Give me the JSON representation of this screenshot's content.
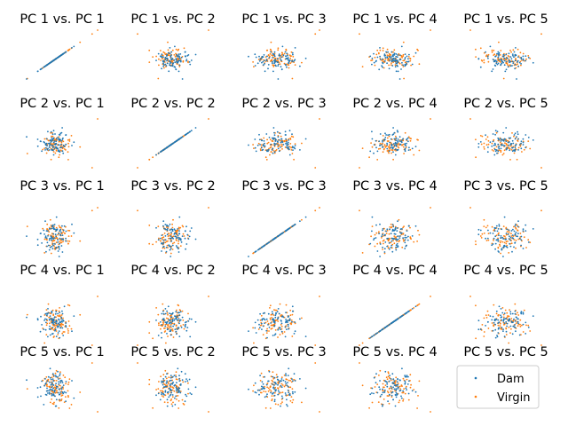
{
  "chart_data": {
    "type": "scatter",
    "layout": "5x5 pairwise principal component scatter matrix",
    "axes_visible": false,
    "grid": false,
    "legend_placement": "bottom-right panel",
    "legend": [
      "Dam",
      "Virgin"
    ],
    "series": [
      {
        "name": "Dam",
        "color": "#1f77b4",
        "marker": "dot"
      },
      {
        "name": "Virgin",
        "color": "#ff7f0e",
        "marker": "dot"
      }
    ],
    "components": [
      "PC 1",
      "PC 2",
      "PC 3",
      "PC 4",
      "PC 5"
    ],
    "titles": [
      [
        "PC 1 vs. PC 1",
        "PC 1 vs. PC 2",
        "PC 1 vs. PC 3",
        "PC 1 vs. PC 4",
        "PC 1 vs. PC 5"
      ],
      [
        "PC 2 vs. PC 1",
        "PC 2 vs. PC 2",
        "PC 2 vs. PC 3",
        "PC 2 vs. PC 4",
        "PC 2 vs. PC 5"
      ],
      [
        "PC 3 vs. PC 1",
        "PC 3 vs. PC 2",
        "PC 3 vs. PC 3",
        "PC 3 vs. PC 4",
        "PC 3 vs. PC 5"
      ],
      [
        "PC 4 vs. PC 1",
        "PC 4 vs. PC 2",
        "PC 4 vs. PC 3",
        "PC 4 vs. PC 4",
        "PC 4 vs. PC 5"
      ],
      [
        "PC 5 vs. PC 1",
        "PC 5 vs. PC 2",
        "PC 5 vs. PC 3",
        "PC 5 vs. PC 4",
        "PC 5 vs. PC 5"
      ]
    ]
  },
  "colors": {
    "dam": "#1f77b4",
    "virgin": "#ff7f0e"
  }
}
